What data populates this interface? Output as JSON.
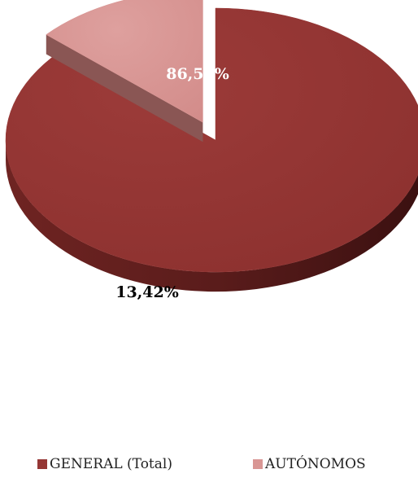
{
  "chart_data": {
    "type": "pie",
    "title": "",
    "slices": [
      {
        "name": "GENERAL (Total)",
        "value": 86.58,
        "label": "86,58%",
        "color": "#953735",
        "label_color": "#ffffff"
      },
      {
        "name": "AUTÓNOMOS",
        "value": 13.42,
        "label": "13,42%",
        "color": "#d99694",
        "label_color": "#000000"
      }
    ],
    "three_d": true,
    "exploded_slice": "AUTÓNOMOS",
    "legend_position": "bottom"
  }
}
